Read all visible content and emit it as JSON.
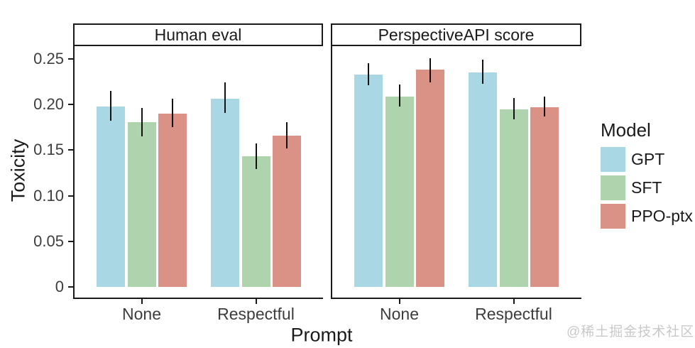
{
  "watermark": "@稀土掘金技术社区",
  "colors": {
    "GPT": "#A9D7E3",
    "SFT": "#AFD3AC",
    "PPO-ptx": "#DA9186",
    "axis": "#1a1a1a",
    "tick_label": "#3d3d3d",
    "errorbar": "#111111",
    "watermark": "#c9c9c9"
  },
  "chart_data": {
    "type": "bar",
    "title": "",
    "xlabel": "Prompt",
    "ylabel": "Toxicity",
    "categories": [
      "None",
      "Respectful"
    ],
    "series_names": [
      "GPT",
      "SFT",
      "PPO-ptx"
    ],
    "legend_title": "Model",
    "legend_position": "right",
    "grid": "off",
    "error_bars": true,
    "ylim": [
      0,
      0.265
    ],
    "yticks": [
      0,
      0.05,
      0.1,
      0.15,
      0.2,
      0.25
    ],
    "ytick_labels": [
      "0",
      "0.05",
      "0.10",
      "0.15",
      "0.20",
      "0.25"
    ],
    "facet_data": [
      {
        "facet": "Human eval",
        "series": [
          {
            "name": "GPT",
            "values": [
              0.198,
              0.206
            ],
            "err_low": [
              0.182,
              0.191
            ],
            "err_high": [
              0.215,
              0.224
            ]
          },
          {
            "name": "SFT",
            "values": [
              0.181,
              0.143
            ],
            "err_low": [
              0.165,
              0.129
            ],
            "err_high": [
              0.196,
              0.157
            ]
          },
          {
            "name": "PPO-ptx",
            "values": [
              0.19,
              0.166
            ],
            "err_low": [
              0.175,
              0.152
            ],
            "err_high": [
              0.206,
              0.181
            ]
          }
        ]
      },
      {
        "facet": "PerspectiveAPI score",
        "series": [
          {
            "name": "GPT",
            "values": [
              0.233,
              0.235
            ],
            "err_low": [
              0.221,
              0.223
            ],
            "err_high": [
              0.245,
              0.249
            ]
          },
          {
            "name": "SFT",
            "values": [
              0.209,
              0.195
            ],
            "err_low": [
              0.198,
              0.184
            ],
            "err_high": [
              0.222,
              0.207
            ]
          },
          {
            "name": "PPO-ptx",
            "values": [
              0.238,
              0.197
            ],
            "err_low": [
              0.224,
              0.187
            ],
            "err_high": [
              0.251,
              0.209
            ]
          }
        ]
      }
    ]
  }
}
